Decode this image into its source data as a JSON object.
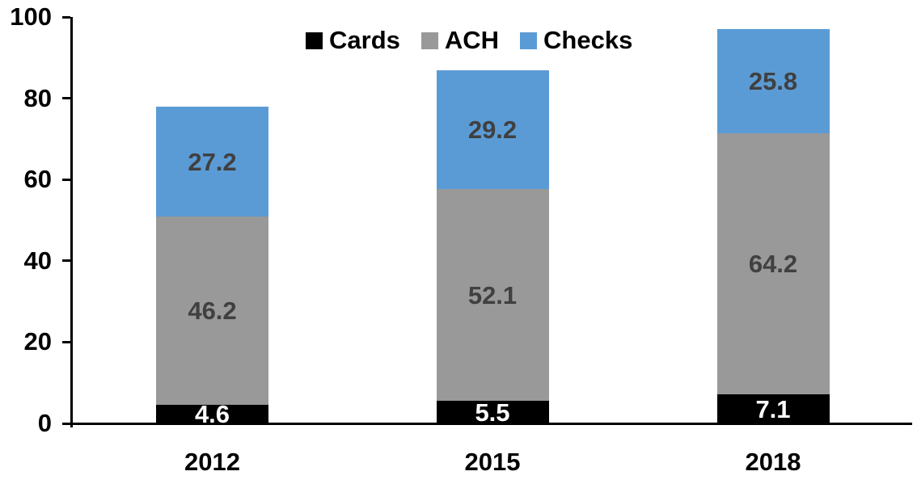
{
  "chart_data": {
    "type": "bar",
    "stacked": true,
    "title": "",
    "xlabel": "",
    "ylabel": "",
    "categories": [
      "2012",
      "2015",
      "2018"
    ],
    "series": [
      {
        "name": "Cards",
        "color": "#000000",
        "label_color": "#ffffff",
        "values": [
          4.6,
          5.5,
          7.1
        ]
      },
      {
        "name": "ACH",
        "color": "#999999",
        "label_color": "#404040",
        "values": [
          46.2,
          52.1,
          64.2
        ]
      },
      {
        "name": "Checks",
        "color": "#5b9bd5",
        "label_color": "#404040",
        "values": [
          27.2,
          29.2,
          25.8
        ]
      }
    ],
    "ylim": [
      0,
      100
    ],
    "yticks": [
      0,
      20,
      40,
      60,
      80,
      100
    ],
    "grid": false,
    "legend_position": "top-center",
    "value_labels_shown": true,
    "axis_color": "#000000",
    "background_color": "#ffffff"
  }
}
